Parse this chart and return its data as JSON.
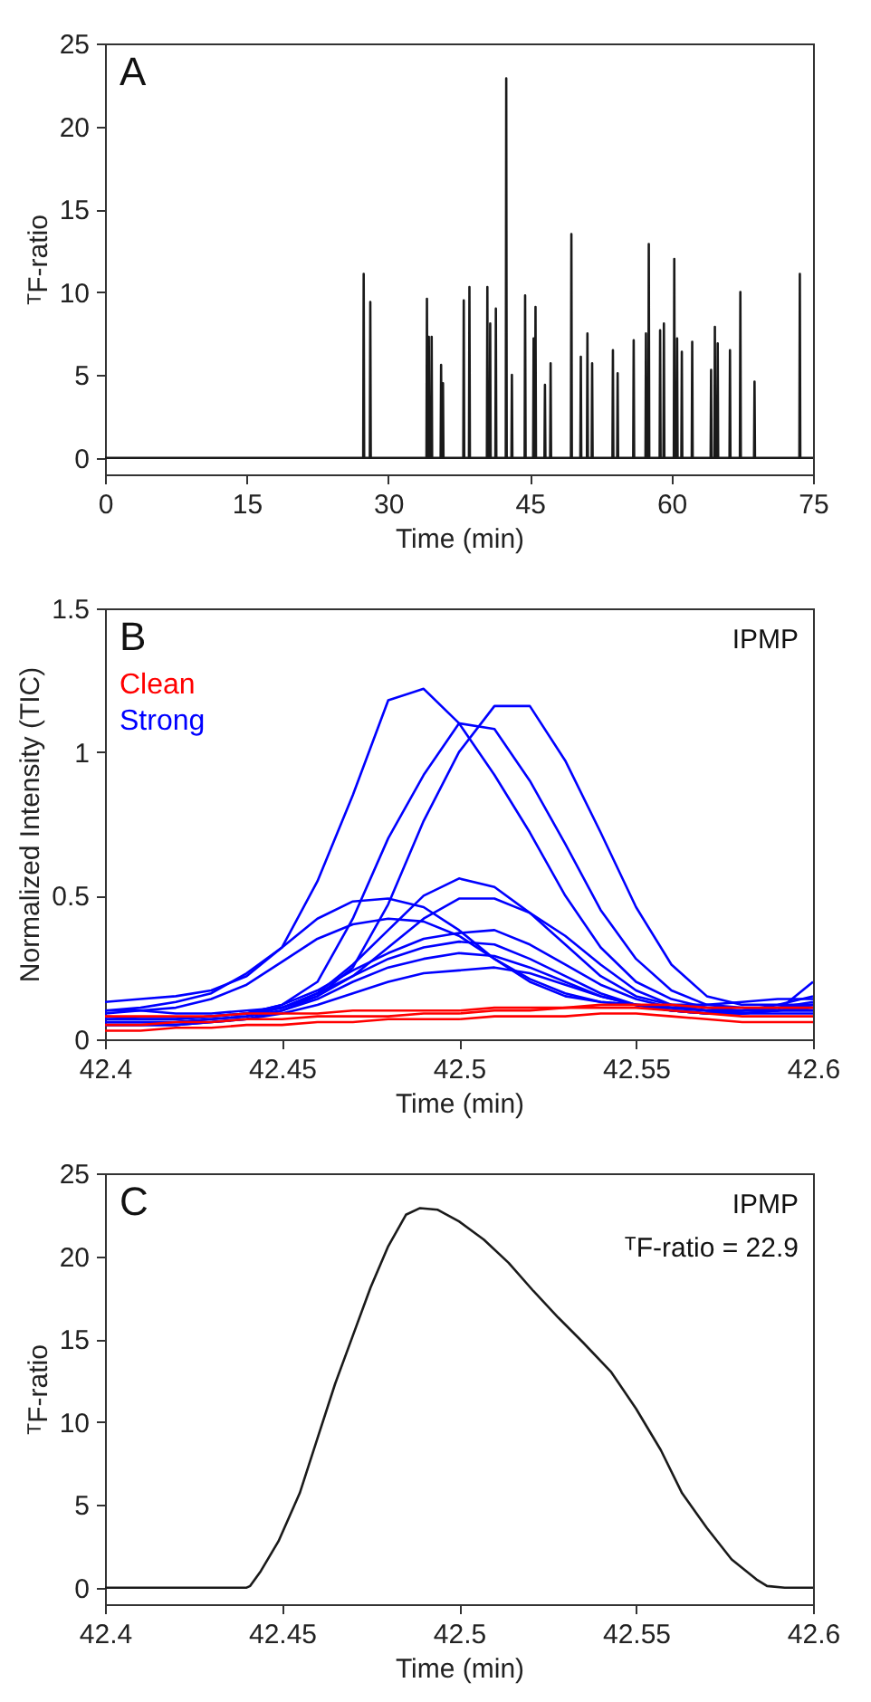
{
  "chart_data": [
    {
      "type": "line",
      "xlabel": "Time (min)",
      "ylabel": "ᵀF-ratio",
      "annotations": [
        "A"
      ],
      "xlim": [
        0,
        75
      ],
      "xticks": [
        0,
        15,
        30,
        45,
        60,
        75
      ],
      "ylim": [
        -1,
        25
      ],
      "yticks": [
        0,
        5,
        10,
        15,
        20,
        25
      ],
      "series": [
        {
          "color": "#1a1a1a",
          "x": [
            0,
            27.35,
            27.4,
            27.45,
            28.05,
            28.1,
            28.15,
            34.05,
            34.1,
            34.15,
            34.25,
            34.3,
            34.35,
            34.55,
            34.6,
            34.65,
            35.55,
            35.6,
            35.65,
            35.75,
            35.8,
            35.85,
            37.95,
            38.0,
            38.05,
            38.55,
            38.6,
            38.65,
            40.45,
            40.5,
            40.55,
            40.75,
            40.8,
            40.85,
            41.35,
            41.4,
            41.45,
            42.45,
            42.5,
            42.55,
            43.05,
            43.1,
            43.15,
            44.45,
            44.5,
            44.55,
            45.35,
            45.4,
            45.45,
            45.55,
            45.6,
            45.65,
            46.55,
            46.6,
            46.65,
            47.15,
            47.2,
            47.25,
            49.35,
            49.4,
            49.45,
            50.35,
            50.4,
            50.45,
            51.05,
            51.1,
            51.15,
            51.55,
            51.6,
            51.65,
            53.75,
            53.8,
            53.85,
            54.25,
            54.3,
            54.35,
            55.95,
            56.0,
            56.05,
            57.25,
            57.3,
            57.35,
            57.55,
            57.6,
            57.65,
            58.75,
            58.8,
            58.85,
            59.15,
            59.2,
            59.25,
            60.25,
            60.3,
            60.35,
            60.55,
            60.6,
            60.65,
            61.05,
            61.1,
            61.15,
            62.15,
            62.2,
            62.25,
            64.15,
            64.2,
            64.25,
            64.55,
            64.6,
            64.65,
            64.85,
            64.9,
            64.95,
            66.15,
            66.2,
            66.25,
            67.25,
            67.3,
            67.35,
            68.75,
            68.8,
            68.85,
            73.55,
            73.6,
            73.65,
            75
          ],
          "values": [
            0,
            0,
            11.1,
            0,
            0,
            9.4,
            0,
            0,
            9.6,
            0,
            0,
            7.3,
            0,
            0,
            7.3,
            0,
            0,
            5.6,
            0,
            0,
            4.5,
            0,
            0,
            9.5,
            0,
            0,
            10.3,
            0,
            0,
            10.3,
            0,
            0,
            8.1,
            0,
            0,
            9.0,
            0,
            0,
            22.9,
            0,
            0,
            5.0,
            0,
            0,
            9.8,
            0,
            0,
            7.2,
            0,
            0,
            9.1,
            0,
            0,
            4.4,
            0,
            0,
            5.7,
            0,
            0,
            13.5,
            0,
            0,
            6.1,
            0,
            0,
            7.5,
            0,
            0,
            5.7,
            0,
            0,
            6.5,
            0,
            0,
            5.1,
            0,
            0,
            7.1,
            0,
            0,
            7.5,
            0,
            0,
            12.9,
            0,
            0,
            7.7,
            0,
            0,
            8.1,
            0,
            0,
            12.0,
            0,
            0,
            7.2,
            0,
            0,
            6.4,
            0,
            0,
            7.0,
            0,
            0,
            5.3,
            0,
            0,
            7.9,
            0,
            0,
            6.9,
            0,
            0,
            6.5,
            0,
            0,
            10.0,
            0,
            0,
            4.6,
            0,
            0,
            11.1,
            0,
            0
          ]
        }
      ]
    },
    {
      "type": "line",
      "xlabel": "Time (min)",
      "ylabel": "Normalized Intensity (TIC)",
      "annotations": [
        "B",
        "IPMP"
      ],
      "legend": "top left",
      "xlim": [
        42.4,
        42.6
      ],
      "xticks": [
        42.4,
        42.45,
        42.5,
        42.55,
        42.6
      ],
      "ylim": [
        0,
        1.5
      ],
      "yticks": [
        0,
        0.5,
        1,
        1.5
      ],
      "x": [
        42.4,
        42.41,
        42.42,
        42.43,
        42.44,
        42.45,
        42.46,
        42.47,
        42.48,
        42.49,
        42.5,
        42.51,
        42.52,
        42.53,
        42.54,
        42.55,
        42.56,
        42.57,
        42.58,
        42.59,
        42.6
      ],
      "series": [
        {
          "name": "Clean",
          "color": "#ff0000",
          "values": [
            0.05,
            0.05,
            0.06,
            0.06,
            0.07,
            0.07,
            0.08,
            0.08,
            0.08,
            0.09,
            0.09,
            0.1,
            0.1,
            0.11,
            0.11,
            0.11,
            0.1,
            0.09,
            0.08,
            0.08,
            0.08
          ]
        },
        {
          "color": "#ff0000",
          "values": [
            0.08,
            0.08,
            0.08,
            0.08,
            0.09,
            0.09,
            0.09,
            0.1,
            0.1,
            0.1,
            0.1,
            0.11,
            0.11,
            0.11,
            0.12,
            0.12,
            0.12,
            0.11,
            0.11,
            0.11,
            0.11
          ]
        },
        {
          "color": "#ff0000",
          "values": [
            0.03,
            0.03,
            0.04,
            0.04,
            0.05,
            0.05,
            0.06,
            0.06,
            0.07,
            0.07,
            0.07,
            0.08,
            0.08,
            0.08,
            0.09,
            0.09,
            0.08,
            0.07,
            0.06,
            0.06,
            0.06
          ]
        },
        {
          "name": "Strong",
          "color": "#0000ff",
          "values": [
            0.13,
            0.14,
            0.15,
            0.17,
            0.22,
            0.32,
            0.55,
            0.85,
            1.18,
            1.22,
            1.1,
            0.92,
            0.72,
            0.5,
            0.32,
            0.2,
            0.14,
            0.11,
            0.1,
            0.1,
            0.1
          ]
        },
        {
          "color": "#0000ff",
          "values": [
            0.08,
            0.07,
            0.07,
            0.08,
            0.09,
            0.11,
            0.15,
            0.25,
            0.47,
            0.76,
            1.0,
            1.16,
            1.16,
            0.97,
            0.72,
            0.46,
            0.26,
            0.15,
            0.12,
            0.12,
            0.12
          ]
        },
        {
          "color": "#0000ff",
          "values": [
            0.07,
            0.07,
            0.07,
            0.08,
            0.09,
            0.12,
            0.2,
            0.42,
            0.7,
            0.92,
            1.1,
            1.08,
            0.9,
            0.68,
            0.45,
            0.28,
            0.17,
            0.12,
            0.11,
            0.1,
            0.11
          ]
        },
        {
          "color": "#0000ff",
          "values": [
            0.1,
            0.1,
            0.09,
            0.09,
            0.1,
            0.11,
            0.16,
            0.26,
            0.38,
            0.5,
            0.56,
            0.53,
            0.44,
            0.33,
            0.22,
            0.15,
            0.12,
            0.12,
            0.13,
            0.14,
            0.14
          ]
        },
        {
          "color": "#0000ff",
          "values": [
            0.06,
            0.06,
            0.06,
            0.07,
            0.08,
            0.1,
            0.15,
            0.22,
            0.32,
            0.42,
            0.49,
            0.49,
            0.44,
            0.36,
            0.26,
            0.17,
            0.12,
            0.1,
            0.09,
            0.09,
            0.09
          ]
        },
        {
          "color": "#0000ff",
          "values": [
            0.1,
            0.11,
            0.13,
            0.16,
            0.23,
            0.32,
            0.42,
            0.48,
            0.49,
            0.46,
            0.38,
            0.28,
            0.2,
            0.15,
            0.13,
            0.12,
            0.11,
            0.1,
            0.1,
            0.1,
            0.1
          ]
        },
        {
          "color": "#0000ff",
          "values": [
            0.09,
            0.1,
            0.11,
            0.14,
            0.19,
            0.27,
            0.35,
            0.4,
            0.42,
            0.41,
            0.36,
            0.28,
            0.21,
            0.16,
            0.13,
            0.12,
            0.11,
            0.1,
            0.1,
            0.11,
            0.12
          ]
        },
        {
          "color": "#0000ff",
          "values": [
            0.07,
            0.07,
            0.07,
            0.08,
            0.09,
            0.12,
            0.17,
            0.24,
            0.3,
            0.35,
            0.37,
            0.38,
            0.33,
            0.26,
            0.19,
            0.14,
            0.11,
            0.1,
            0.1,
            0.11,
            0.13
          ]
        },
        {
          "color": "#0000ff",
          "values": [
            0.06,
            0.06,
            0.06,
            0.07,
            0.08,
            0.11,
            0.16,
            0.22,
            0.28,
            0.32,
            0.34,
            0.33,
            0.28,
            0.22,
            0.16,
            0.12,
            0.1,
            0.09,
            0.1,
            0.12,
            0.15
          ]
        },
        {
          "color": "#0000ff",
          "values": [
            0.05,
            0.05,
            0.05,
            0.06,
            0.07,
            0.1,
            0.14,
            0.2,
            0.25,
            0.28,
            0.3,
            0.29,
            0.25,
            0.2,
            0.15,
            0.12,
            0.1,
            0.09,
            0.09,
            0.1,
            0.12
          ]
        },
        {
          "color": "#0000ff",
          "values": [
            0.05,
            0.05,
            0.05,
            0.06,
            0.07,
            0.09,
            0.12,
            0.16,
            0.2,
            0.23,
            0.24,
            0.25,
            0.23,
            0.19,
            0.15,
            0.12,
            0.1,
            0.09,
            0.09,
            0.1,
            0.2
          ]
        }
      ]
    },
    {
      "type": "line",
      "xlabel": "Time (min)",
      "ylabel": "ᵀF-ratio",
      "annotations": [
        "C",
        "IPMP",
        "ᵀF-ratio = 22.9"
      ],
      "xlim": [
        42.4,
        42.6
      ],
      "xticks": [
        42.4,
        42.45,
        42.5,
        42.55,
        42.6
      ],
      "ylim": [
        -1,
        25
      ],
      "yticks": [
        0,
        5,
        10,
        15,
        20,
        25
      ],
      "series": [
        {
          "color": "#1a1a1a",
          "x": [
            42.4,
            42.44,
            42.441,
            42.444,
            42.449,
            42.455,
            42.46,
            42.465,
            42.47,
            42.475,
            42.48,
            42.485,
            42.489,
            42.494,
            42.5,
            42.507,
            42.514,
            42.521,
            42.528,
            42.535,
            42.543,
            42.55,
            42.557,
            42.563,
            42.57,
            42.577,
            42.584,
            42.587,
            42.592,
            42.6
          ],
          "values": [
            0,
            0,
            0.1,
            1.0,
            2.8,
            5.7,
            9.0,
            12.3,
            15.2,
            18.1,
            20.6,
            22.5,
            22.9,
            22.8,
            22.1,
            21.0,
            19.6,
            17.9,
            16.3,
            14.8,
            13.0,
            10.8,
            8.3,
            5.7,
            3.6,
            1.7,
            0.5,
            0.1,
            0,
            0
          ]
        }
      ]
    }
  ]
}
